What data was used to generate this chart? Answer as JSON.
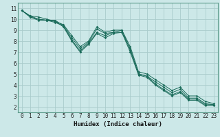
{
  "xlabel": "Humidex (Indice chaleur)",
  "bg_color": "#cce8e8",
  "line_color": "#1a6b5a",
  "grid_color": "#aacccc",
  "spine_color": "#5a9a8a",
  "xlim": [
    -0.5,
    23.5
  ],
  "ylim": [
    1.5,
    11.5
  ],
  "xticks": [
    0,
    1,
    2,
    3,
    4,
    5,
    6,
    7,
    8,
    9,
    10,
    11,
    12,
    13,
    14,
    15,
    16,
    17,
    18,
    19,
    20,
    21,
    22,
    23
  ],
  "yticks": [
    2,
    3,
    4,
    5,
    6,
    7,
    8,
    9,
    10,
    11
  ],
  "series": [
    {
      "x": [
        0,
        1,
        2,
        3,
        4,
        5,
        6,
        7,
        8,
        9,
        10,
        11,
        12,
        13,
        14,
        15,
        16,
        17,
        18,
        19,
        20,
        21,
        22,
        23
      ],
      "y": [
        10.8,
        10.3,
        10.2,
        10.0,
        9.8,
        9.5,
        8.5,
        7.5,
        8.0,
        9.3,
        8.8,
        9.0,
        9.0,
        7.5,
        5.2,
        5.0,
        4.5,
        4.0,
        3.5,
        3.8,
        3.0,
        3.0,
        2.5,
        2.3
      ]
    },
    {
      "x": [
        0,
        1,
        2,
        3,
        4,
        5,
        6,
        7,
        8,
        9,
        10,
        11,
        12,
        13,
        14,
        15,
        16,
        17,
        18,
        19,
        20,
        21,
        22,
        23
      ],
      "y": [
        10.8,
        10.3,
        10.0,
        9.9,
        9.7,
        9.4,
        8.3,
        7.3,
        7.9,
        9.1,
        8.7,
        8.8,
        8.8,
        7.3,
        5.0,
        4.8,
        4.3,
        3.8,
        3.3,
        3.6,
        2.8,
        2.8,
        2.3,
        2.2
      ]
    },
    {
      "x": [
        0,
        1,
        2,
        3,
        4,
        5,
        6,
        7,
        8,
        9,
        10,
        11,
        12,
        13,
        14,
        15,
        16,
        17,
        18,
        19,
        20,
        21,
        22,
        23
      ],
      "y": [
        10.8,
        10.2,
        9.9,
        9.9,
        9.9,
        9.4,
        8.1,
        7.1,
        7.8,
        8.8,
        8.5,
        8.8,
        9.0,
        7.2,
        5.0,
        4.8,
        4.1,
        3.6,
        3.1,
        3.4,
        2.7,
        2.7,
        2.2,
        2.2
      ]
    },
    {
      "x": [
        0,
        1,
        2,
        3,
        4,
        5,
        6,
        7,
        8,
        9,
        10,
        11,
        12,
        13,
        14,
        15,
        16,
        17,
        18,
        19,
        20,
        21,
        22,
        23
      ],
      "y": [
        10.8,
        10.2,
        10.0,
        9.9,
        9.8,
        9.3,
        8.0,
        7.0,
        7.7,
        8.7,
        8.3,
        8.7,
        8.8,
        7.0,
        4.9,
        4.7,
        4.0,
        3.5,
        3.0,
        3.3,
        2.6,
        2.6,
        2.1,
        2.1
      ]
    }
  ]
}
